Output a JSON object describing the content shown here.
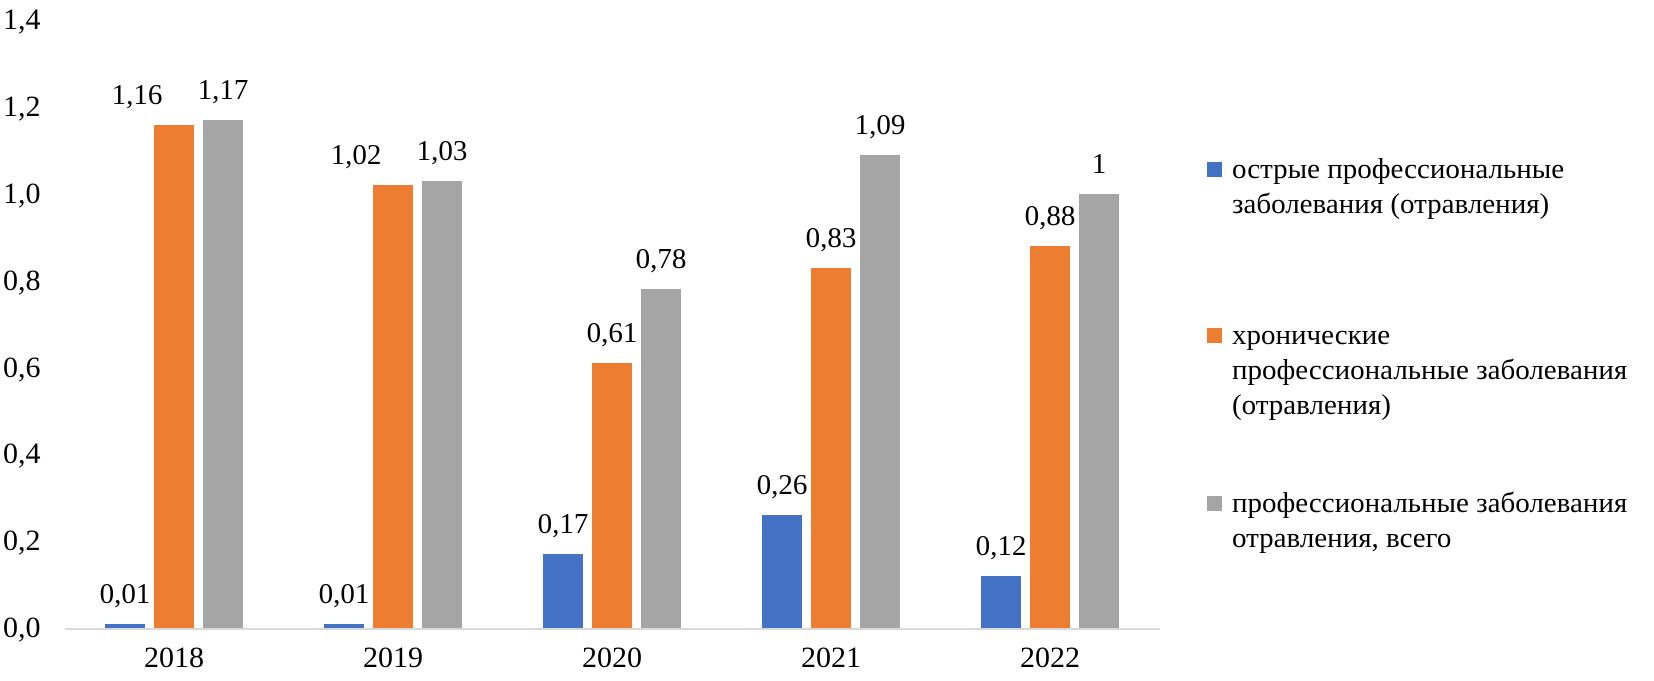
{
  "chart_data": {
    "type": "bar",
    "title": "",
    "xlabel": "",
    "ylabel": "",
    "categories": [
      "2018",
      "2019",
      "2020",
      "2021",
      "2022"
    ],
    "series": [
      {
        "name": "острые профессиональные заболевания (отравления)",
        "legend_text": "острые профессиональные\nзаболевания (отравления)",
        "color": "#4472C4",
        "values": [
          0.01,
          0.01,
          0.17,
          0.26,
          0.12
        ],
        "labels": [
          "0,01",
          "0,01",
          "0,17",
          "0,26",
          "0,12"
        ]
      },
      {
        "name": "хронические профессиональные заболевания (отравления)",
        "legend_text": "хронические\nпрофессиональные заболевания\n(отравления)",
        "color": "#ED7D31",
        "values": [
          1.16,
          1.02,
          0.61,
          0.83,
          0.88
        ],
        "labels": [
          "1,16",
          "1,02",
          "0,61",
          "0,83",
          "0,88"
        ]
      },
      {
        "name": "профессиональные заболевания отравления, всего",
        "legend_text": "профессиональные заболевания\nотравления, всего",
        "color": "#A5A5A5",
        "values": [
          1.17,
          1.03,
          0.78,
          1.09,
          1.0
        ],
        "labels": [
          "1,17",
          "1,03",
          "0,78",
          "1,09",
          "1"
        ]
      }
    ],
    "ylim": [
      0,
      1.4
    ],
    "ytick_step": 0.2,
    "yticks": [
      "0,0",
      "0,2",
      "0,4",
      "0,6",
      "0,8",
      "1,0",
      "1,2",
      "1,4"
    ],
    "grid": false,
    "legend_position": "right",
    "decimal_separator": ","
  },
  "colors": {
    "background": "#FFFFFF",
    "axis_line": "#D9D9D9",
    "text": "#000000"
  }
}
